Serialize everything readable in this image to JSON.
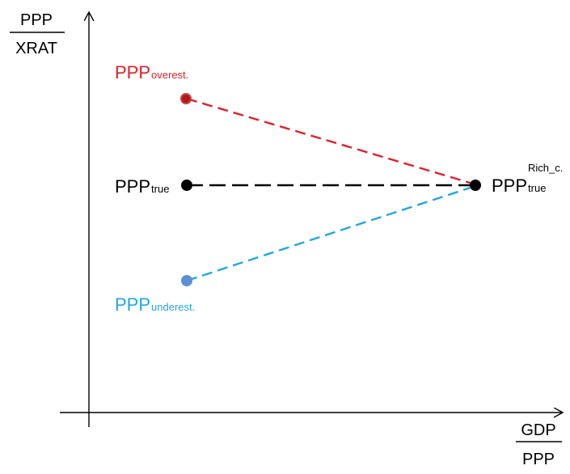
{
  "y_axis_label": {
    "numerator": "PPP",
    "denominator": "XRAT"
  },
  "x_axis_label": {
    "numerator": "GDP",
    "denominator": "PPP"
  },
  "points": {
    "overest": {
      "main": "PPP",
      "sub": "overest.",
      "color": "#e0202a"
    },
    "true": {
      "main": "PPP",
      "sub": "true",
      "color": "#000000"
    },
    "underest": {
      "main": "PPP",
      "sub": "underest.",
      "color": "#22a7e0"
    },
    "rich": {
      "main": "PPP",
      "sub": "true",
      "sup": "Rich_c.",
      "color": "#000000"
    }
  },
  "colors": {
    "red_line": "#e0202a",
    "black_line": "#000000",
    "blue_line": "#22a7e0",
    "overest_marker_fill": "#b01818",
    "overest_marker_stroke": "#c84040",
    "underest_marker_fill": "#5b8fd6"
  }
}
